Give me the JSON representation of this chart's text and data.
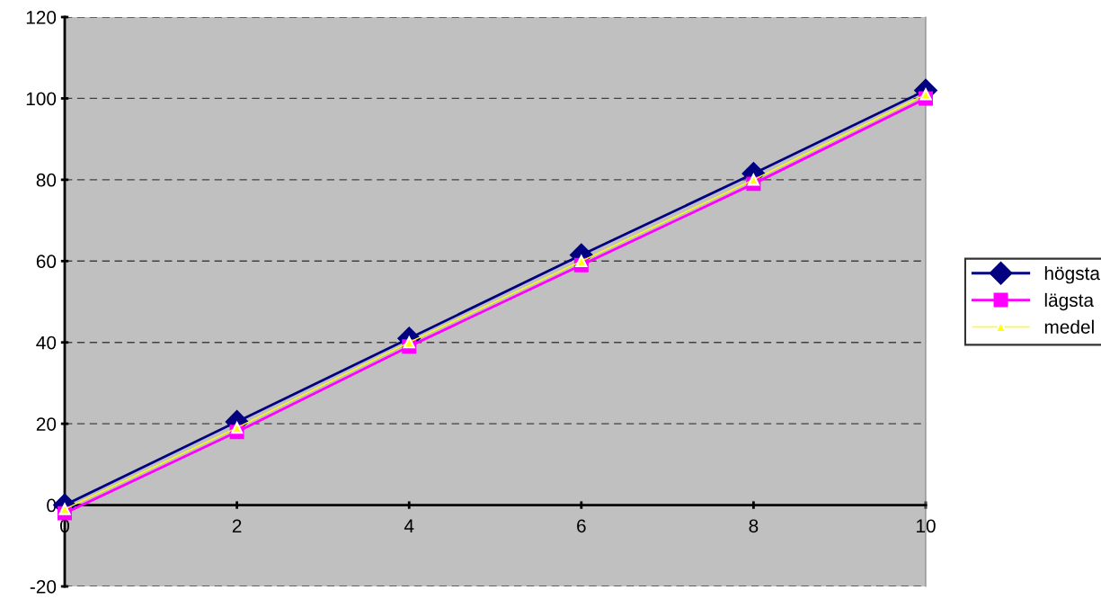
{
  "chart_data": {
    "type": "line",
    "x": [
      0,
      2,
      4,
      6,
      8,
      10
    ],
    "series": [
      {
        "name": "högsta",
        "color": "#000080",
        "marker": "diamond",
        "values": [
          0,
          20.5,
          41,
          61.5,
          81.5,
          102
        ]
      },
      {
        "name": "lägsta",
        "color": "#ff00ff",
        "marker": "square",
        "values": [
          -2,
          18,
          39,
          59,
          79,
          100
        ]
      },
      {
        "name": "medel",
        "color": "#ffff00",
        "marker": "triangle",
        "values": [
          -1,
          19,
          40,
          60,
          80,
          101
        ]
      }
    ],
    "xlim": [
      0,
      10
    ],
    "xticks": [
      0,
      2,
      4,
      6,
      8,
      10
    ],
    "ylim": [
      -20,
      120
    ],
    "yticks": [
      -20,
      0,
      20,
      40,
      60,
      80,
      100,
      120
    ],
    "grid": "y",
    "legend": "right",
    "line_style": "solid"
  }
}
